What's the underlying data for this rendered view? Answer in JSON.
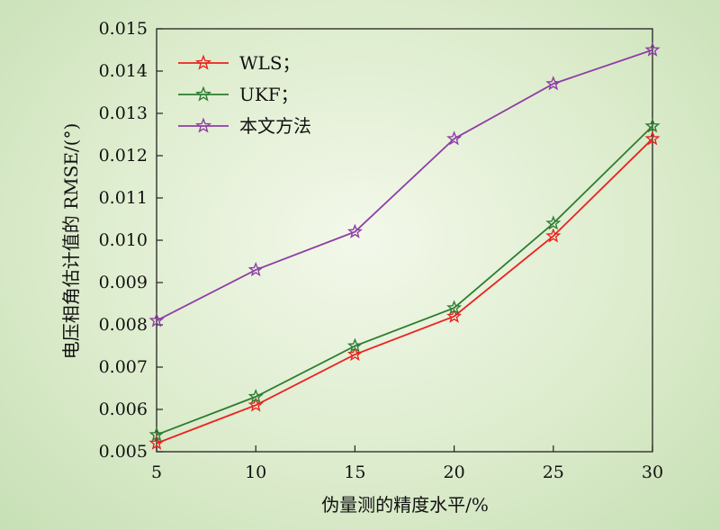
{
  "chart_data": {
    "type": "line",
    "title": "",
    "xlabel": "伪量测的精度水平/%",
    "ylabel": "电压相角估计值的 RMSE/(°)",
    "x": [
      5,
      10,
      15,
      20,
      25,
      30
    ],
    "xlim": [
      5,
      30
    ],
    "ylim": [
      0.005,
      0.015
    ],
    "x_ticks": [
      5,
      10,
      15,
      20,
      25,
      30
    ],
    "y_ticks": [
      "0.005",
      "0.006",
      "0.007",
      "0.008",
      "0.009",
      "0.010",
      "0.011",
      "0.012",
      "0.013",
      "0.014",
      "0.015"
    ],
    "grid": false,
    "legend_position": "top-left",
    "marker": "star",
    "series": [
      {
        "name": "WLS；",
        "color": "#e8241f",
        "values": [
          0.0052,
          0.0061,
          0.0073,
          0.0082,
          0.0101,
          0.0124
        ]
      },
      {
        "name": "UKF；",
        "color": "#2e7d32",
        "values": [
          0.0054,
          0.0063,
          0.0075,
          0.0084,
          0.0104,
          0.0127
        ]
      },
      {
        "name": "本文方法",
        "color": "#8e3ea6",
        "values": [
          0.0081,
          0.0093,
          0.0102,
          0.0124,
          0.0137,
          0.0145
        ]
      }
    ]
  }
}
